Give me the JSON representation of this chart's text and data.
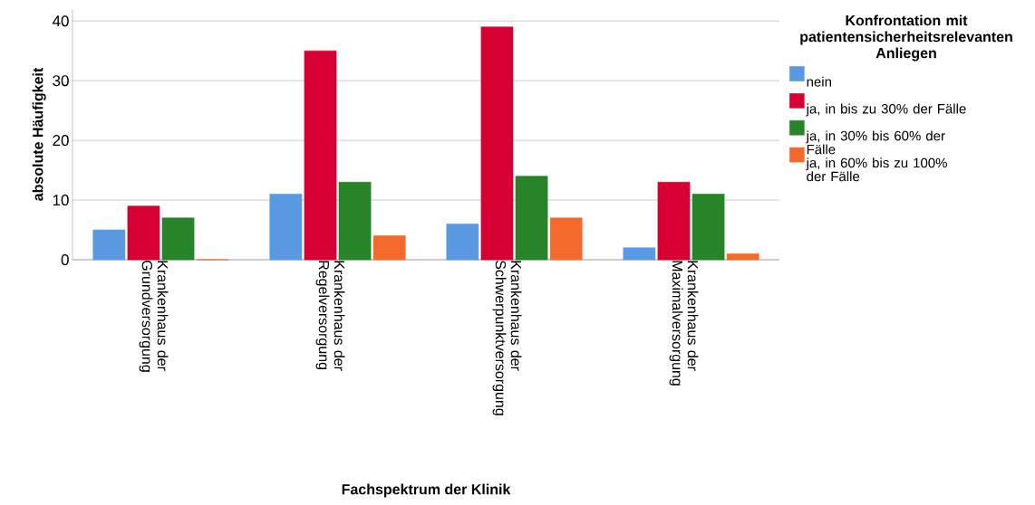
{
  "chart_data": {
    "type": "bar",
    "xlabel": "Fachspektrum der Klinik",
    "ylabel": "absolute Häufigkeit",
    "legend_title": "Konfrontation mit patientensicherheitsrelevanten Anliegen",
    "categories": [
      "Krankenhaus der Grundversorgung",
      "Krankenhaus der Regelversorgung",
      "Krankenhaus der Schwerpunktversorgung",
      "Krankenhaus der Maximalversorgung"
    ],
    "series": [
      {
        "name": "nein",
        "color": "#5899e2",
        "values": [
          5,
          11,
          6,
          2
        ]
      },
      {
        "name": "ja, in bis zu 30% der Fälle",
        "color": "#d60032",
        "values": [
          9,
          35,
          39,
          13
        ]
      },
      {
        "name": "ja, in 30% bis 60% der Fälle",
        "color": "#288429",
        "values": [
          7,
          13,
          14,
          11
        ]
      },
      {
        "name": "ja, in 60% bis zu 100% der Fälle",
        "color": "#f36a2c",
        "values": [
          0,
          4,
          7,
          1
        ]
      }
    ],
    "ylim": [
      0,
      42
    ],
    "yticks": [
      0,
      10,
      20,
      30,
      40
    ],
    "grid": "y",
    "legend": "right"
  }
}
